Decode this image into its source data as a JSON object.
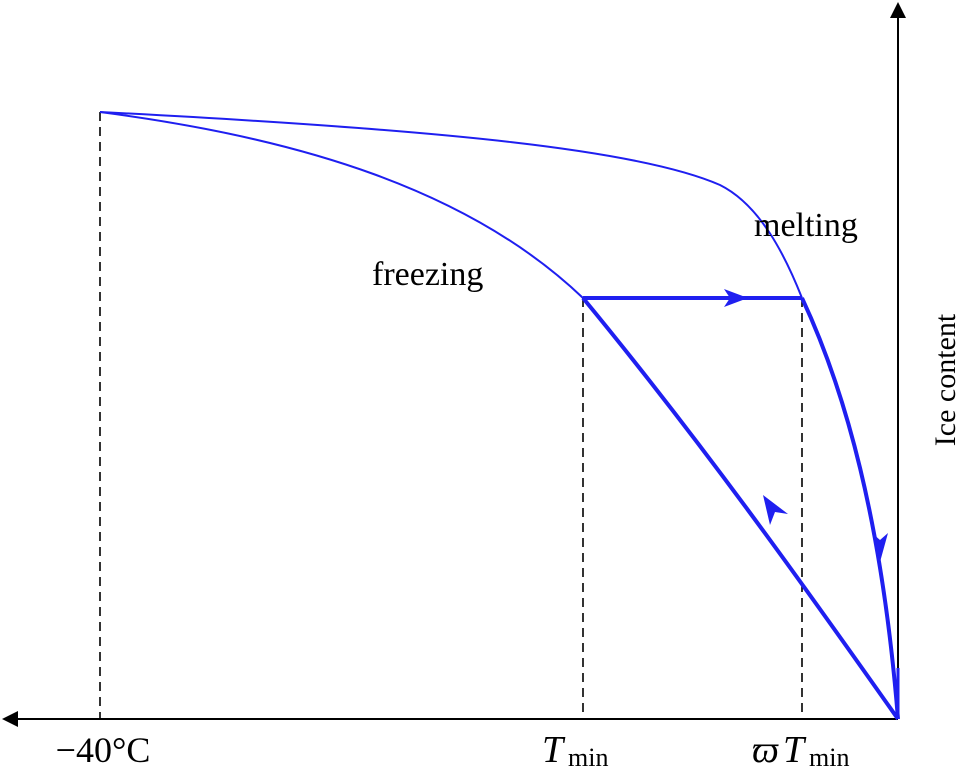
{
  "diagram": {
    "axis": {
      "y_label": "Ice content"
    },
    "curve_labels": {
      "freezing": "freezing",
      "melting": "melting"
    },
    "x_tick_labels": {
      "minus40": "−40°C",
      "tmin_symbol": "T",
      "tmin_subscript": "min",
      "varpi_symbol": "ϖ",
      "varpi_t_symbol": "T",
      "varpi_subscript": "min"
    },
    "colors": {
      "curve": "#1f1ff0",
      "axis": "#000000",
      "guide": "#000000"
    }
  }
}
